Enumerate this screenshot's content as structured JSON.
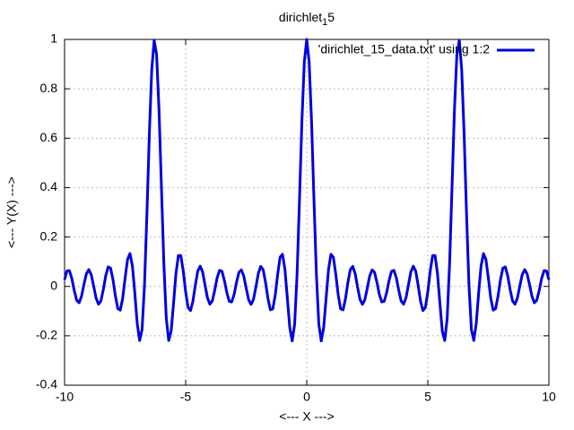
{
  "chart_data": {
    "type": "line",
    "title": "dirichlet",
    "title_subscript": "1",
    "title_suffix": "5",
    "xlabel": "<--- X --->",
    "ylabel": "<--- Y(X) --->",
    "xlim": [
      -10,
      10
    ],
    "ylim": [
      -0.4,
      1
    ],
    "xticks": [
      -10,
      -5,
      0,
      5,
      10
    ],
    "yticks": [
      -0.4,
      -0.2,
      0,
      0.2,
      0.4,
      0.6,
      0.8,
      1
    ],
    "grid": true,
    "legend": "top-right",
    "x": [
      -10,
      -9.9,
      -9.8,
      -9.7,
      -9.6,
      -9.5,
      -9.4,
      -9.3,
      -9.2,
      -9.1,
      -9,
      -8.9,
      -8.8,
      -8.7,
      -8.6,
      -8.5,
      -8.4,
      -8.3,
      -8.2,
      -8.1,
      -8,
      -7.9,
      -7.8,
      -7.7,
      -7.6,
      -7.5,
      -7.4,
      -7.3,
      -7.2,
      -7.1,
      -7,
      -6.9,
      -6.8,
      -6.7,
      -6.6,
      -6.5,
      -6.4,
      -6.3,
      -6.2,
      -6.1,
      -6,
      -5.9,
      -5.8,
      -5.7,
      -5.6,
      -5.5,
      -5.4,
      -5.3,
      -5.2,
      -5.1,
      -5,
      -4.9,
      -4.8,
      -4.7,
      -4.6,
      -4.5,
      -4.4,
      -4.3,
      -4.2,
      -4.1,
      -4,
      -3.9,
      -3.8,
      -3.7,
      -3.6,
      -3.5,
      -3.4,
      -3.3,
      -3.2,
      -3.1,
      -3,
      -2.9,
      -2.8,
      -2.7,
      -2.6,
      -2.5,
      -2.4,
      -2.3,
      -2.2,
      -2.1,
      -2,
      -1.9,
      -1.8,
      -1.7,
      -1.6,
      -1.5,
      -1.4,
      -1.3,
      -1.2,
      -1.1,
      -1,
      -0.9,
      -0.8,
      -0.7,
      -0.6,
      -0.5,
      -0.4,
      -0.3,
      -0.2,
      -0.1,
      0,
      0.1,
      0.2,
      0.3,
      0.4,
      0.5,
      0.6,
      0.7,
      0.8,
      0.9,
      1,
      1.1,
      1.2,
      1.3,
      1.4,
      1.5,
      1.6,
      1.7,
      1.8,
      1.9,
      2,
      2.1,
      2.2,
      2.3,
      2.4,
      2.5,
      2.6,
      2.7,
      2.8,
      2.9,
      3,
      3.1,
      3.2,
      3.3,
      3.4,
      3.5,
      3.6,
      3.7,
      3.8,
      3.9,
      4,
      4.1,
      4.2,
      4.3,
      4.4,
      4.5,
      4.6,
      4.7,
      4.8,
      4.9,
      5,
      5.1,
      5.2,
      5.3,
      5.4,
      5.5,
      5.6,
      5.7,
      5.8,
      5.9,
      6,
      6.1,
      6.2,
      6.3,
      6.4,
      6.5,
      6.6,
      6.7,
      6.8,
      6.9,
      7,
      7.1,
      7.2,
      7.3,
      7.4,
      7.5,
      7.6,
      7.7,
      7.8,
      7.9,
      8,
      8.1,
      8.2,
      8.3,
      8.4,
      8.5,
      8.6,
      8.7,
      8.8,
      8.9,
      9,
      9.1,
      9.2,
      9.3,
      9.4,
      9.5,
      9.6,
      9.7,
      9.8,
      9.9,
      10
    ],
    "series": [
      {
        "name": "'dirichlet_15_data.txt' using 1:2",
        "color": "#0000e0",
        "values": [
          0.027,
          0.063,
          0.064,
          0.032,
          -0.017,
          -0.056,
          -0.066,
          -0.04,
          0.008,
          0.051,
          0.068,
          0.048,
          0.002,
          -0.047,
          -0.072,
          -0.059,
          -0.013,
          0.043,
          0.079,
          0.074,
          0.027,
          -0.039,
          -0.09,
          -0.096,
          -0.048,
          0.034,
          0.109,
          0.133,
          0.084,
          -0.026,
          -0.15,
          -0.219,
          -0.175,
          0.005,
          0.291,
          0.615,
          0.877,
          0.997,
          0.938,
          0.715,
          0.402,
          0.093,
          -0.129,
          -0.219,
          -0.182,
          -0.069,
          0.052,
          0.125,
          0.125,
          0.063,
          -0.022,
          -0.085,
          -0.098,
          -0.06,
          0.005,
          0.062,
          0.082,
          0.059,
          0.006,
          -0.046,
          -0.072,
          -0.059,
          -0.016,
          0.035,
          0.065,
          0.061,
          0.024,
          -0.025,
          -0.06,
          -0.063,
          -0.033,
          0.016,
          0.057,
          0.067,
          0.042,
          -0.007,
          -0.054,
          -0.073,
          -0.053,
          -0.003,
          0.052,
          0.081,
          0.068,
          0.016,
          -0.05,
          -0.095,
          -0.091,
          -0.035,
          0.049,
          0.118,
          0.13,
          0.069,
          -0.048,
          -0.167,
          -0.221,
          -0.154,
          0.047,
          0.347,
          0.666,
          0.909,
          1,
          0.909,
          0.666,
          0.347,
          0.047,
          -0.154,
          -0.221,
          -0.167,
          -0.048,
          0.069,
          0.13,
          0.118,
          0.049,
          -0.035,
          -0.091,
          -0.095,
          -0.05,
          0.016,
          0.068,
          0.081,
          0.052,
          -0.003,
          -0.053,
          -0.073,
          -0.054,
          -0.007,
          0.042,
          0.067,
          0.057,
          0.016,
          -0.033,
          -0.063,
          -0.06,
          -0.025,
          0.024,
          0.061,
          0.065,
          0.035,
          -0.016,
          -0.059,
          -0.072,
          -0.046,
          0.006,
          0.059,
          0.082,
          0.062,
          0.005,
          -0.06,
          -0.098,
          -0.085,
          -0.022,
          0.063,
          0.125,
          0.125,
          0.052,
          -0.069,
          -0.182,
          -0.219,
          -0.129,
          0.093,
          0.402,
          0.715,
          0.938,
          0.997,
          0.877,
          0.615,
          0.291,
          0.005,
          -0.175,
          -0.219,
          -0.15,
          -0.026,
          0.084,
          0.133,
          0.109,
          0.034,
          -0.048,
          -0.096,
          -0.09,
          -0.039,
          0.027,
          0.074,
          0.079,
          0.043,
          -0.013,
          -0.059,
          -0.072,
          -0.047,
          0.002,
          0.048,
          0.068,
          0.051,
          0.008,
          -0.04,
          -0.066,
          -0.056,
          -0.017,
          0.032,
          0.064,
          0.063,
          0.027
        ]
      }
    ]
  }
}
